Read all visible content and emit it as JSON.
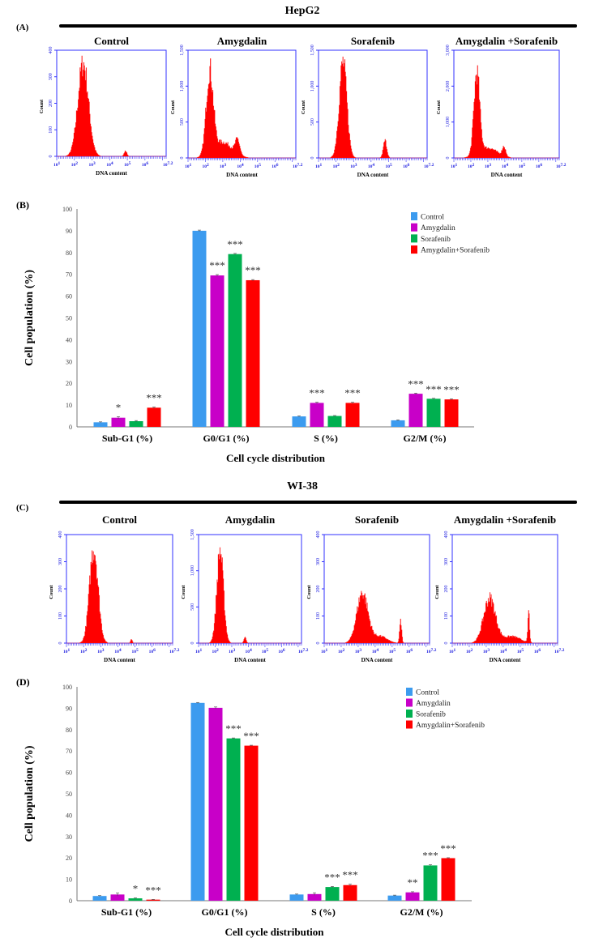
{
  "chart_data": [
    {
      "id": "A",
      "type": "histogram",
      "panel_label": "(A)",
      "cell_line": "HepG2",
      "xlabel": "DNA content",
      "ylabel": "Count",
      "x_ticks": [
        "1",
        "2",
        "3",
        "4",
        "5",
        "6",
        "7.2"
      ],
      "panels": [
        {
          "title": "Control",
          "ymax": 400,
          "y_ticks": [
            "0",
            "100",
            "200",
            "300",
            "400"
          ],
          "peaks": [
            {
              "center": 2.5,
              "height": 350,
              "width": 0.3
            },
            {
              "center": 4.9,
              "height": 20,
              "width": 0.08
            }
          ]
        },
        {
          "title": "Amygdalin",
          "ymax": 1500,
          "y_ticks": [
            "0",
            "500",
            "1,000",
            "1,500"
          ],
          "peaks": [
            {
              "center": 2.25,
              "height": 1150,
              "width": 0.2
            },
            {
              "center": 3.0,
              "height": 220,
              "width": 0.55
            },
            {
              "center": 3.85,
              "height": 200,
              "width": 0.13
            }
          ]
        },
        {
          "title": "Sorafenib",
          "ymax": 1500,
          "y_ticks": [
            "0",
            "500",
            "1,000",
            "1,500"
          ],
          "peaks": [
            {
              "center": 2.4,
              "height": 1330,
              "width": 0.22
            },
            {
              "center": 4.8,
              "height": 240,
              "width": 0.1
            }
          ]
        },
        {
          "title": "Amygdalin +Sorafenib",
          "ymax": 3000,
          "y_ticks": [
            "0",
            "1,000",
            "2,000",
            "3,000"
          ],
          "peaks": [
            {
              "center": 2.35,
              "height": 2250,
              "width": 0.17
            },
            {
              "center": 3.0,
              "height": 280,
              "width": 0.55
            },
            {
              "center": 3.95,
              "height": 270,
              "width": 0.1
            }
          ]
        }
      ]
    },
    {
      "id": "B",
      "type": "bar",
      "panel_label": "(B)",
      "title": "",
      "xlabel": "Cell cycle distribution",
      "ylabel": "Cell population (%)",
      "ylim": [
        0,
        100
      ],
      "y_ticks": [
        0,
        10,
        20,
        30,
        40,
        50,
        60,
        70,
        80,
        90,
        100
      ],
      "categories": [
        "Sub-G1 (%)",
        "G0/G1 (%)",
        "S (%)",
        "G2/M (%)"
      ],
      "legend_position": "top-right",
      "series": [
        {
          "name": "Control",
          "color": "#3c9bef",
          "values": [
            2.1,
            90.0,
            4.8,
            3.0
          ],
          "errors": [
            0.2,
            0.3,
            0.2,
            0.2
          ],
          "sig": [
            "",
            "",
            "",
            ""
          ]
        },
        {
          "name": "Amygdalin",
          "color": "#c800c8",
          "values": [
            4.2,
            69.5,
            11.0,
            15.2
          ],
          "errors": [
            0.5,
            0.4,
            0.3,
            0.3
          ],
          "sig": [
            "*",
            "***",
            "***",
            "***"
          ]
        },
        {
          "name": "Sorafenib",
          "color": "#00b050",
          "values": [
            2.6,
            79.3,
            5.0,
            12.9
          ],
          "errors": [
            0.3,
            0.3,
            0.2,
            0.2
          ],
          "sig": [
            "",
            "***",
            "",
            "***"
          ]
        },
        {
          "name": "Amygdalin+Sorafenib",
          "color": "#ff0000",
          "values": [
            8.8,
            67.3,
            11.0,
            12.6
          ],
          "errors": [
            0.3,
            0.3,
            0.3,
            0.3
          ],
          "sig": [
            "***",
            "***",
            "***",
            "***"
          ]
        }
      ]
    },
    {
      "id": "C",
      "type": "histogram",
      "panel_label": "(C)",
      "cell_line": "WI-38",
      "xlabel": "DNA content",
      "ylabel": "Count",
      "x_ticks": [
        "1",
        "2",
        "3",
        "4",
        "5",
        "6",
        "7.2"
      ],
      "panels": [
        {
          "title": "Control",
          "ymax": 400,
          "y_ticks": [
            "0",
            "100",
            "200",
            "300",
            "400"
          ],
          "peaks": [
            {
              "center": 2.6,
              "height": 350,
              "width": 0.25
            },
            {
              "center": 4.8,
              "height": 15,
              "width": 0.05
            }
          ]
        },
        {
          "title": "Amygdalin",
          "ymax": 1500,
          "y_ticks": [
            "0",
            "500",
            "1,000",
            "1,500"
          ],
          "peaks": [
            {
              "center": 2.3,
              "height": 1280,
              "width": 0.2
            },
            {
              "center": 3.8,
              "height": 80,
              "width": 0.07
            }
          ]
        },
        {
          "title": "Sorafenib",
          "ymax": 400,
          "y_ticks": [
            "0",
            "100",
            "200",
            "300",
            "400"
          ],
          "peaks": [
            {
              "center": 3.25,
              "height": 185,
              "width": 0.33
            },
            {
              "center": 4.3,
              "height": 25,
              "width": 0.4
            },
            {
              "center": 5.5,
              "height": 80,
              "width": 0.06
            }
          ]
        },
        {
          "title": "Amygdalin +Sorafenib",
          "ymax": 400,
          "y_ticks": [
            "0",
            "100",
            "200",
            "300",
            "400"
          ],
          "peaks": [
            {
              "center": 3.2,
              "height": 165,
              "width": 0.35
            },
            {
              "center": 4.5,
              "height": 25,
              "width": 0.5
            },
            {
              "center": 5.5,
              "height": 115,
              "width": 0.05
            }
          ]
        }
      ]
    },
    {
      "id": "D",
      "type": "bar",
      "panel_label": "(D)",
      "title": "",
      "xlabel": "Cell cycle distribution",
      "ylabel": "Cell population (%)",
      "ylim": [
        0,
        100
      ],
      "y_ticks": [
        0,
        10,
        20,
        30,
        40,
        50,
        60,
        70,
        80,
        90,
        100
      ],
      "categories": [
        "Sub-G1 (%)",
        "G0/G1 (%)",
        "S (%)",
        "G2/M (%)"
      ],
      "legend_position": "top-right",
      "series": [
        {
          "name": "Control",
          "color": "#3c9bef",
          "values": [
            2.2,
            92.5,
            2.9,
            2.4
          ],
          "errors": [
            0.2,
            0.2,
            0.2,
            0.2
          ],
          "sig": [
            "",
            "",
            "",
            ""
          ]
        },
        {
          "name": "Amygdalin",
          "color": "#c800c8",
          "values": [
            2.9,
            90.2,
            3.1,
            3.9
          ],
          "errors": [
            0.7,
            0.4,
            0.6,
            0.3
          ],
          "sig": [
            "",
            "",
            "",
            "**"
          ]
        },
        {
          "name": "Sorafenib",
          "color": "#00b050",
          "values": [
            1.1,
            75.9,
            6.4,
            16.5
          ],
          "errors": [
            0.2,
            0.2,
            0.3,
            0.3
          ],
          "sig": [
            "*",
            "***",
            "***",
            "***"
          ]
        },
        {
          "name": "Amygdalin+Sorafenib",
          "color": "#ff0000",
          "values": [
            0.5,
            72.5,
            7.3,
            19.9
          ],
          "errors": [
            0.1,
            0.2,
            0.4,
            0.2
          ],
          "sig": [
            "***",
            "***",
            "***",
            "***"
          ]
        }
      ]
    }
  ]
}
